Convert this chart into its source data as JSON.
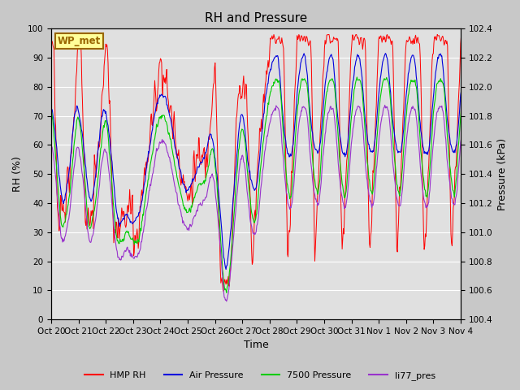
{
  "title": "RH and Pressure",
  "xlabel": "Time",
  "ylabel_left": "RH (%)",
  "ylabel_right": "Pressure (kPa)",
  "ylim_left": [
    0,
    100
  ],
  "ylim_right": [
    100.4,
    102.4
  ],
  "xtick_labels": [
    "Oct 20",
    "Oct 21",
    "Oct 22",
    "Oct 23",
    "Oct 24",
    "Oct 25",
    "Oct 26",
    "Oct 27",
    "Oct 28",
    "Oct 29",
    "Oct 30",
    "Oct 31",
    "Nov 1",
    "Nov 2",
    "Nov 3",
    "Nov 4"
  ],
  "legend_labels": [
    "HMP RH",
    "Air Pressure",
    "7500 Pressure",
    "li77_pres"
  ],
  "legend_colors": [
    "#ff0000",
    "#0000dd",
    "#00cc00",
    "#9933cc"
  ],
  "site_label": "WP_met",
  "site_label_color": "#996600",
  "site_label_bg": "#ffff99",
  "fig_bg": "#c8c8c8",
  "plot_bg": "#e0e0e0",
  "grid_color": "#ffffff",
  "title_fontsize": 11,
  "axis_fontsize": 9,
  "tick_fontsize": 7.5
}
